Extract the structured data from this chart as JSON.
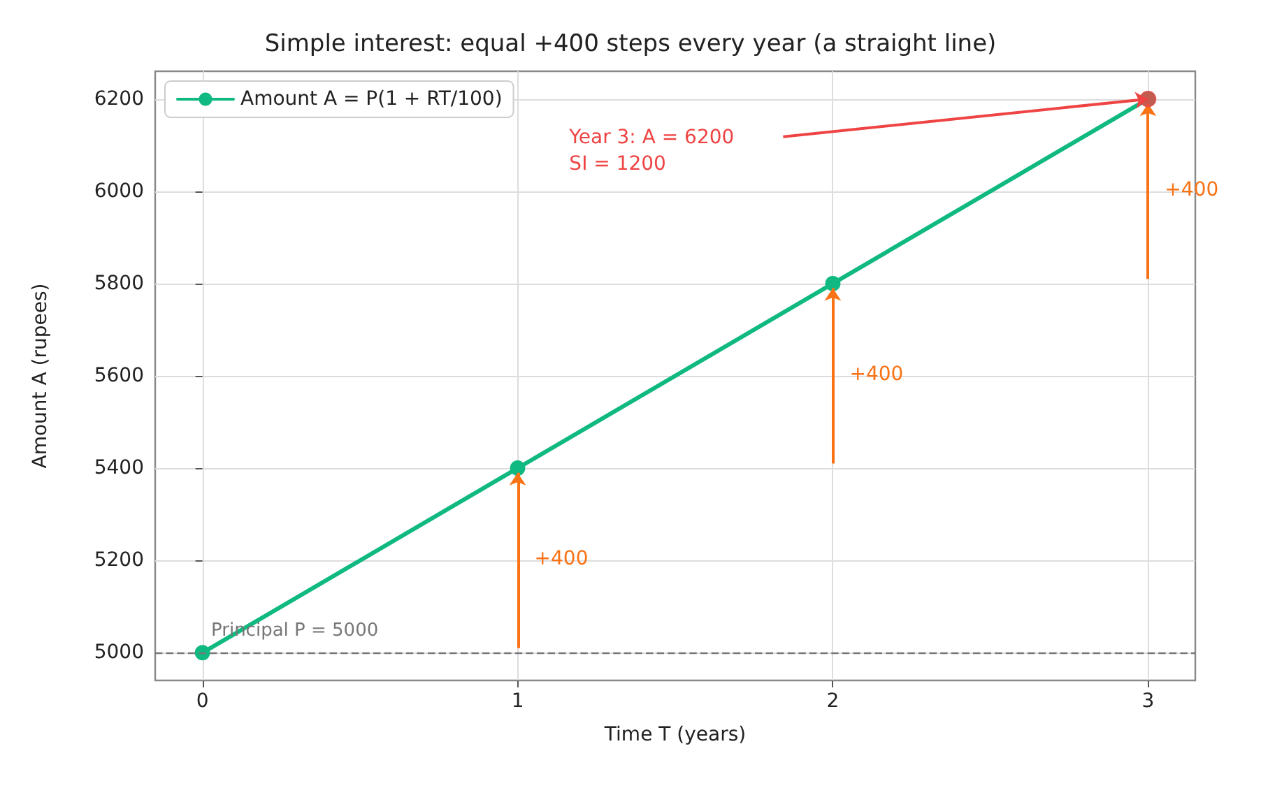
{
  "chart_data": {
    "type": "line",
    "title": "Simple interest: equal +400 steps every year (a straight line)",
    "xlabel": "Time T (years)",
    "ylabel": "Amount A (rupees)",
    "x": [
      0,
      1,
      2,
      3
    ],
    "series": [
      {
        "name": "Amount A = P(1 + RT/100)",
        "color": "#10b981",
        "values": [
          5000,
          5400,
          5800,
          6200
        ]
      },
      {
        "type": "scatter",
        "color": "#ef4444",
        "x": [
          3
        ],
        "values": [
          6200
        ]
      }
    ],
    "xlim": [
      -0.15,
      3.15
    ],
    "xticks": [
      0,
      1,
      2,
      3
    ],
    "ylim": [
      4940,
      6260
    ],
    "yticks": [
      5000,
      5200,
      5400,
      5600,
      5800,
      6000,
      6200
    ],
    "ref_lines": [
      {
        "axis": "y",
        "value": 5000,
        "label": "Principal P = 5000",
        "color": "#777777",
        "line_style": "dashed"
      }
    ],
    "annotations": [
      "+400",
      "+400",
      "+400",
      "Year 3: A = 6200\nSI = 1200"
    ],
    "grid": true,
    "legend": "top left",
    "marker": "circle",
    "line_style": "solid"
  }
}
